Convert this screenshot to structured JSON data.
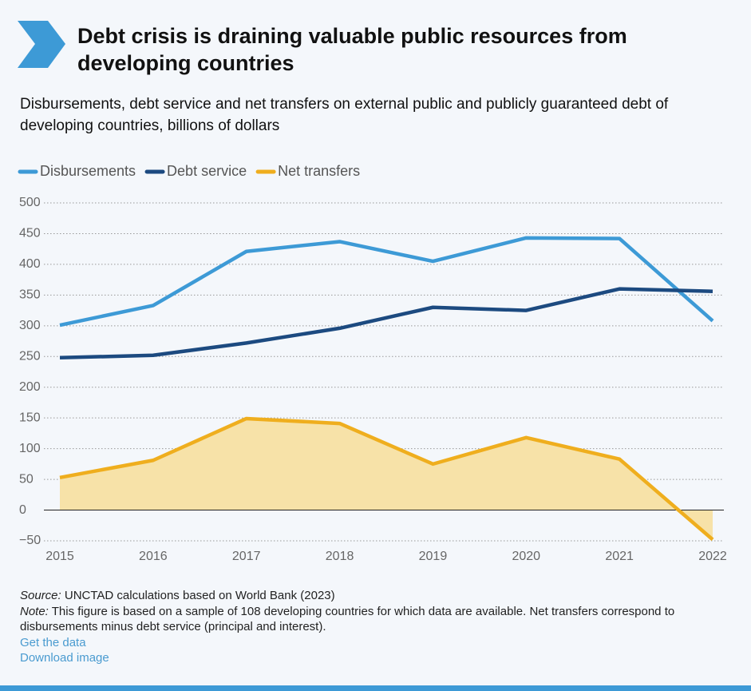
{
  "chart_data": {
    "type": "line",
    "title": "Debt crisis is draining valuable public resources from developing countries",
    "subtitle": "Disbursements, debt service and net transfers on external public and publicly guaranteed debt of developing countries, billions of dollars",
    "categories": [
      "2015",
      "2016",
      "2017",
      "2018",
      "2019",
      "2020",
      "2021",
      "2022"
    ],
    "series": [
      {
        "name": "Disbursements",
        "color": "#3d9ad6",
        "values": [
          301,
          333,
          421,
          437,
          405,
          443,
          442,
          308
        ]
      },
      {
        "name": "Debt service",
        "color": "#1c4a80",
        "values": [
          248,
          252,
          272,
          296,
          330,
          325,
          360,
          356
        ]
      },
      {
        "name": "Net transfers",
        "color": "#efae1e",
        "fill": "#f7e2a8",
        "values": [
          53,
          81,
          149,
          141,
          75,
          118,
          83,
          -48
        ]
      }
    ],
    "ylim": [
      -50,
      500
    ],
    "yticks": [
      {
        "value": -50,
        "label": "−50"
      },
      0,
      50,
      100,
      150,
      200,
      250,
      300,
      350,
      400,
      450,
      500
    ],
    "grid": true,
    "legend": "top-left"
  },
  "footer": {
    "source_label": "Source:",
    "source": "UNCTAD calculations based on World Bank (2023)",
    "note_label": "Note:",
    "note": "This figure is based on a sample of 108 developing countries for which data are available. Net transfers correspond to disbursements minus debt service (principal and interest).",
    "links": [
      "Get the data",
      "Download image"
    ]
  }
}
